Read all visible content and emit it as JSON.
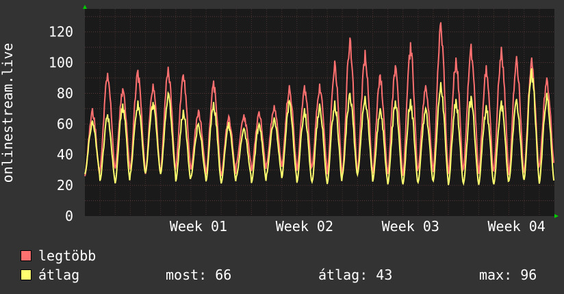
{
  "chart_data": {
    "type": "line",
    "ylabel": "onlinestream.live",
    "ylim": [
      0,
      135
    ],
    "yticks": [
      0,
      20,
      40,
      60,
      80,
      100,
      120
    ],
    "x_range": [
      0,
      31
    ],
    "xtick_labels": [
      {
        "label": "Week 01",
        "x": 7.5
      },
      {
        "label": "Week 02",
        "x": 14.5
      },
      {
        "label": "Week 03",
        "x": 21.5
      },
      {
        "label": "Week 04",
        "x": 28.5
      }
    ],
    "grid": true,
    "series": [
      {
        "name": "legtöbb",
        "color": "#ff7070",
        "x": [
          0.5,
          1.5,
          2.5,
          3.5,
          4.5,
          5.5,
          6.5,
          7.5,
          8.5,
          9.5,
          10.5,
          11.5,
          12.5,
          13.5,
          14.5,
          15.5,
          16.5,
          17.5,
          18.5,
          19.5,
          20.5,
          21.5,
          22.5,
          23.5,
          24.5,
          25.5,
          26.5,
          27.5,
          28.5,
          29.5,
          30.5
        ],
        "values": [
          70,
          93,
          83,
          95,
          86,
          97,
          92,
          69,
          88,
          65,
          66,
          68,
          72,
          85,
          85,
          86,
          101,
          116,
          108,
          92,
          98,
          113,
          85,
          126,
          103,
          112,
          98,
          110,
          104,
          103,
          90
        ]
      },
      {
        "name": "átlag",
        "color": "#ffff70",
        "x": [
          0.5,
          1.5,
          2.5,
          3.5,
          4.5,
          5.5,
          6.5,
          7.5,
          8.5,
          9.5,
          10.5,
          11.5,
          12.5,
          13.5,
          14.5,
          15.5,
          16.5,
          17.5,
          18.5,
          19.5,
          20.5,
          21.5,
          22.5,
          23.5,
          24.5,
          25.5,
          26.5,
          27.5,
          28.5,
          29.5,
          30.5
        ],
        "values": [
          62,
          66,
          73,
          75,
          74,
          80,
          69,
          60,
          74,
          61,
          57,
          60,
          64,
          75,
          70,
          73,
          75,
          80,
          78,
          70,
          75,
          76,
          70,
          87,
          76,
          78,
          72,
          75,
          76,
          96,
          80
        ]
      }
    ]
  },
  "legend": {
    "max_label": "legtöbb",
    "avg_label": "átlag",
    "now": "most: 66",
    "avg": "átlag: 43",
    "max": "max: 96"
  },
  "colors": {
    "background": "#333333",
    "plot_background": "#1a1a1a",
    "grid": "#5a3a3a",
    "text": "#ffffff",
    "arrow": "#00cc00"
  }
}
